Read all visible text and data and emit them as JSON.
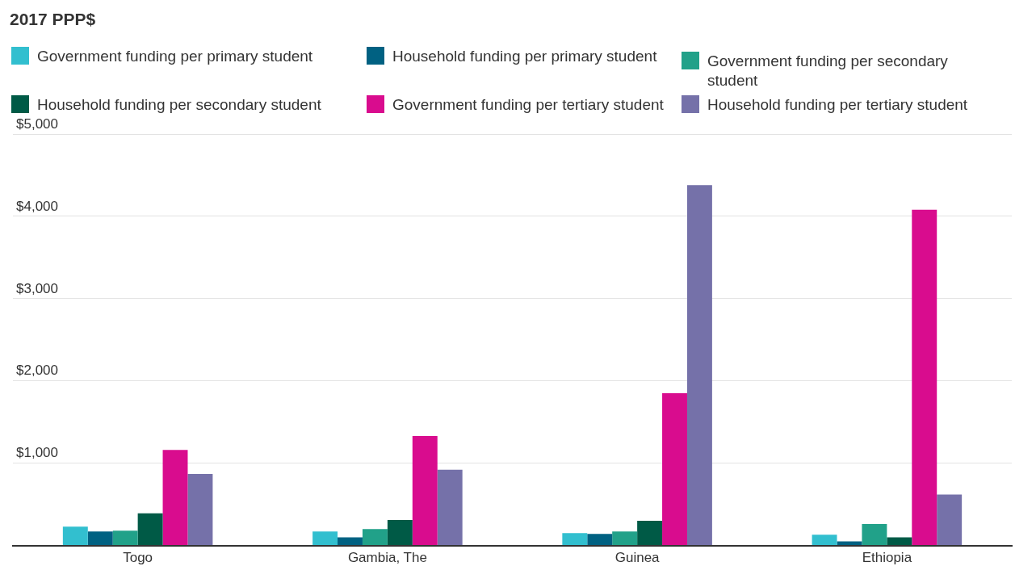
{
  "chart_data": {
    "type": "bar",
    "title": "2017 PPP$",
    "categories": [
      "Togo",
      "Gambia, The",
      "Guinea",
      "Ethiopia"
    ],
    "series": [
      {
        "name": "Government funding per primary student",
        "color": "#32bfcf",
        "values": [
          230,
          170,
          150,
          130
        ]
      },
      {
        "name": "Household funding per primary student",
        "color": "#006182",
        "values": [
          170,
          100,
          140,
          50
        ]
      },
      {
        "name": "Government funding per secondary student",
        "color": "#21a189",
        "values": [
          180,
          200,
          170,
          260
        ]
      },
      {
        "name": "Household funding per secondary student",
        "color": "#005a46",
        "values": [
          390,
          310,
          300,
          100
        ]
      },
      {
        "name": "Government funding per tertiary student",
        "color": "#d90c8e",
        "values": [
          1160,
          1330,
          1850,
          4080
        ]
      },
      {
        "name": "Household funding per tertiary student",
        "color": "#7571a9",
        "values": [
          870,
          920,
          4380,
          620
        ]
      }
    ],
    "ylim": [
      0,
      5000
    ],
    "yticks": [
      {
        "value": 0,
        "label": null
      },
      {
        "value": 1000,
        "label": "$1,000"
      },
      {
        "value": 2000,
        "label": "$2,000"
      },
      {
        "value": 3000,
        "label": "$3,000"
      },
      {
        "value": 4000,
        "label": "$4,000"
      },
      {
        "value": 5000,
        "label": "$5,000"
      }
    ],
    "grid": "y",
    "legend": "top"
  }
}
